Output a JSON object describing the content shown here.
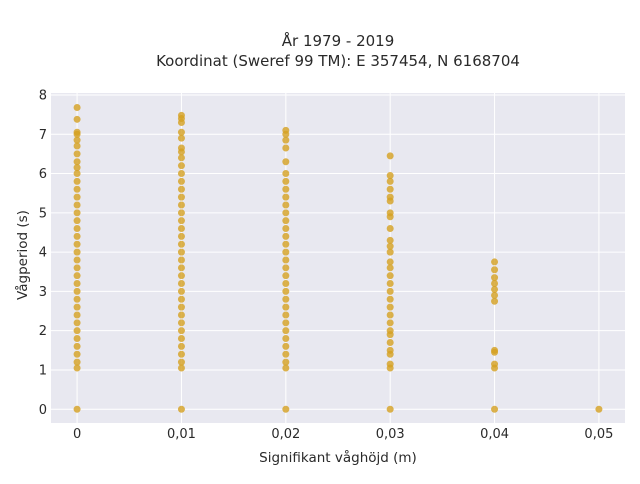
{
  "chart_data": {
    "type": "scatter",
    "title_line1": "År 1979 - 2019",
    "title_line2": "Koordinat (Sweref 99 TM): E 357454, N 6168704",
    "xlabel": "Signifikant våghöjd (m)",
    "ylabel": "Vågperiod (s)",
    "xlim": [
      -0.0025,
      0.0525
    ],
    "ylim": [
      -0.35,
      8.05
    ],
    "x_ticks": [
      {
        "value": 0,
        "label": "0"
      },
      {
        "value": 0.01,
        "label": "0,01"
      },
      {
        "value": 0.02,
        "label": "0,02"
      },
      {
        "value": 0.03,
        "label": "0,03"
      },
      {
        "value": 0.04,
        "label": "0,04"
      },
      {
        "value": 0.05,
        "label": "0,05"
      }
    ],
    "y_ticks": [
      {
        "value": 0,
        "label": "0"
      },
      {
        "value": 1,
        "label": "1"
      },
      {
        "value": 2,
        "label": "2"
      },
      {
        "value": 3,
        "label": "3"
      },
      {
        "value": 4,
        "label": "4"
      },
      {
        "value": 5,
        "label": "5"
      },
      {
        "value": 6,
        "label": "6"
      },
      {
        "value": 7,
        "label": "7"
      },
      {
        "value": 8,
        "label": "8"
      }
    ],
    "grid": true,
    "marker_color": "#d4a021",
    "plot_bg": "#e8e8f0",
    "series": [
      {
        "points": [
          {
            "x": 0,
            "y": 0
          },
          {
            "x": 0,
            "y": 1.05
          },
          {
            "x": 0,
            "y": 1.2
          },
          {
            "x": 0,
            "y": 1.4
          },
          {
            "x": 0,
            "y": 1.6
          },
          {
            "x": 0,
            "y": 1.8
          },
          {
            "x": 0,
            "y": 2.0
          },
          {
            "x": 0,
            "y": 2.2
          },
          {
            "x": 0,
            "y": 2.4
          },
          {
            "x": 0,
            "y": 2.6
          },
          {
            "x": 0,
            "y": 2.8
          },
          {
            "x": 0,
            "y": 3.0
          },
          {
            "x": 0,
            "y": 3.2
          },
          {
            "x": 0,
            "y": 3.4
          },
          {
            "x": 0,
            "y": 3.6
          },
          {
            "x": 0,
            "y": 3.8
          },
          {
            "x": 0,
            "y": 4.0
          },
          {
            "x": 0,
            "y": 4.2
          },
          {
            "x": 0,
            "y": 4.4
          },
          {
            "x": 0,
            "y": 4.6
          },
          {
            "x": 0,
            "y": 4.8
          },
          {
            "x": 0,
            "y": 5.0
          },
          {
            "x": 0,
            "y": 5.2
          },
          {
            "x": 0,
            "y": 5.4
          },
          {
            "x": 0,
            "y": 5.6
          },
          {
            "x": 0,
            "y": 5.8
          },
          {
            "x": 0,
            "y": 6.0
          },
          {
            "x": 0,
            "y": 6.15
          },
          {
            "x": 0,
            "y": 6.3
          },
          {
            "x": 0,
            "y": 6.5
          },
          {
            "x": 0,
            "y": 6.7
          },
          {
            "x": 0,
            "y": 6.85
          },
          {
            "x": 0,
            "y": 7.0
          },
          {
            "x": 0,
            "y": 7.05
          },
          {
            "x": 0,
            "y": 7.38
          },
          {
            "x": 0,
            "y": 7.68
          },
          {
            "x": 0.01,
            "y": 0
          },
          {
            "x": 0.01,
            "y": 1.05
          },
          {
            "x": 0.01,
            "y": 1.2
          },
          {
            "x": 0.01,
            "y": 1.4
          },
          {
            "x": 0.01,
            "y": 1.6
          },
          {
            "x": 0.01,
            "y": 1.8
          },
          {
            "x": 0.01,
            "y": 2.0
          },
          {
            "x": 0.01,
            "y": 2.2
          },
          {
            "x": 0.01,
            "y": 2.4
          },
          {
            "x": 0.01,
            "y": 2.6
          },
          {
            "x": 0.01,
            "y": 2.8
          },
          {
            "x": 0.01,
            "y": 3.0
          },
          {
            "x": 0.01,
            "y": 3.2
          },
          {
            "x": 0.01,
            "y": 3.4
          },
          {
            "x": 0.01,
            "y": 3.6
          },
          {
            "x": 0.01,
            "y": 3.8
          },
          {
            "x": 0.01,
            "y": 4.0
          },
          {
            "x": 0.01,
            "y": 4.2
          },
          {
            "x": 0.01,
            "y": 4.4
          },
          {
            "x": 0.01,
            "y": 4.6
          },
          {
            "x": 0.01,
            "y": 4.8
          },
          {
            "x": 0.01,
            "y": 5.0
          },
          {
            "x": 0.01,
            "y": 5.2
          },
          {
            "x": 0.01,
            "y": 5.4
          },
          {
            "x": 0.01,
            "y": 5.6
          },
          {
            "x": 0.01,
            "y": 5.8
          },
          {
            "x": 0.01,
            "y": 6.0
          },
          {
            "x": 0.01,
            "y": 6.2
          },
          {
            "x": 0.01,
            "y": 6.4
          },
          {
            "x": 0.01,
            "y": 6.55
          },
          {
            "x": 0.01,
            "y": 6.65
          },
          {
            "x": 0.01,
            "y": 6.9
          },
          {
            "x": 0.01,
            "y": 7.05
          },
          {
            "x": 0.01,
            "y": 7.3
          },
          {
            "x": 0.01,
            "y": 7.4
          },
          {
            "x": 0.01,
            "y": 7.48
          },
          {
            "x": 0.02,
            "y": 0
          },
          {
            "x": 0.02,
            "y": 1.05
          },
          {
            "x": 0.02,
            "y": 1.2
          },
          {
            "x": 0.02,
            "y": 1.4
          },
          {
            "x": 0.02,
            "y": 1.6
          },
          {
            "x": 0.02,
            "y": 1.8
          },
          {
            "x": 0.02,
            "y": 2.0
          },
          {
            "x": 0.02,
            "y": 2.2
          },
          {
            "x": 0.02,
            "y": 2.4
          },
          {
            "x": 0.02,
            "y": 2.6
          },
          {
            "x": 0.02,
            "y": 2.8
          },
          {
            "x": 0.02,
            "y": 3.0
          },
          {
            "x": 0.02,
            "y": 3.2
          },
          {
            "x": 0.02,
            "y": 3.4
          },
          {
            "x": 0.02,
            "y": 3.6
          },
          {
            "x": 0.02,
            "y": 3.8
          },
          {
            "x": 0.02,
            "y": 4.0
          },
          {
            "x": 0.02,
            "y": 4.2
          },
          {
            "x": 0.02,
            "y": 4.4
          },
          {
            "x": 0.02,
            "y": 4.6
          },
          {
            "x": 0.02,
            "y": 4.8
          },
          {
            "x": 0.02,
            "y": 5.0
          },
          {
            "x": 0.02,
            "y": 5.2
          },
          {
            "x": 0.02,
            "y": 5.4
          },
          {
            "x": 0.02,
            "y": 5.6
          },
          {
            "x": 0.02,
            "y": 5.8
          },
          {
            "x": 0.02,
            "y": 6.0
          },
          {
            "x": 0.02,
            "y": 6.3
          },
          {
            "x": 0.02,
            "y": 6.65
          },
          {
            "x": 0.02,
            "y": 6.85
          },
          {
            "x": 0.02,
            "y": 7.0
          },
          {
            "x": 0.02,
            "y": 7.1
          },
          {
            "x": 0.03,
            "y": 0
          },
          {
            "x": 0.03,
            "y": 1.05
          },
          {
            "x": 0.03,
            "y": 1.15
          },
          {
            "x": 0.03,
            "y": 1.4
          },
          {
            "x": 0.03,
            "y": 1.5
          },
          {
            "x": 0.03,
            "y": 1.7
          },
          {
            "x": 0.03,
            "y": 1.9
          },
          {
            "x": 0.03,
            "y": 2.0
          },
          {
            "x": 0.03,
            "y": 2.2
          },
          {
            "x": 0.03,
            "y": 2.4
          },
          {
            "x": 0.03,
            "y": 2.6
          },
          {
            "x": 0.03,
            "y": 2.8
          },
          {
            "x": 0.03,
            "y": 3.0
          },
          {
            "x": 0.03,
            "y": 3.2
          },
          {
            "x": 0.03,
            "y": 3.4
          },
          {
            "x": 0.03,
            "y": 3.6
          },
          {
            "x": 0.03,
            "y": 3.75
          },
          {
            "x": 0.03,
            "y": 4.0
          },
          {
            "x": 0.03,
            "y": 4.15
          },
          {
            "x": 0.03,
            "y": 4.3
          },
          {
            "x": 0.03,
            "y": 4.6
          },
          {
            "x": 0.03,
            "y": 4.9
          },
          {
            "x": 0.03,
            "y": 5.0
          },
          {
            "x": 0.03,
            "y": 5.3
          },
          {
            "x": 0.03,
            "y": 5.4
          },
          {
            "x": 0.03,
            "y": 5.6
          },
          {
            "x": 0.03,
            "y": 5.8
          },
          {
            "x": 0.03,
            "y": 5.95
          },
          {
            "x": 0.03,
            "y": 6.45
          },
          {
            "x": 0.04,
            "y": 0
          },
          {
            "x": 0.04,
            "y": 1.05
          },
          {
            "x": 0.04,
            "y": 1.15
          },
          {
            "x": 0.04,
            "y": 1.45
          },
          {
            "x": 0.04,
            "y": 1.5
          },
          {
            "x": 0.04,
            "y": 2.75
          },
          {
            "x": 0.04,
            "y": 2.9
          },
          {
            "x": 0.04,
            "y": 3.05
          },
          {
            "x": 0.04,
            "y": 3.2
          },
          {
            "x": 0.04,
            "y": 3.35
          },
          {
            "x": 0.04,
            "y": 3.55
          },
          {
            "x": 0.04,
            "y": 3.75
          },
          {
            "x": 0.05,
            "y": 0
          }
        ]
      }
    ]
  }
}
